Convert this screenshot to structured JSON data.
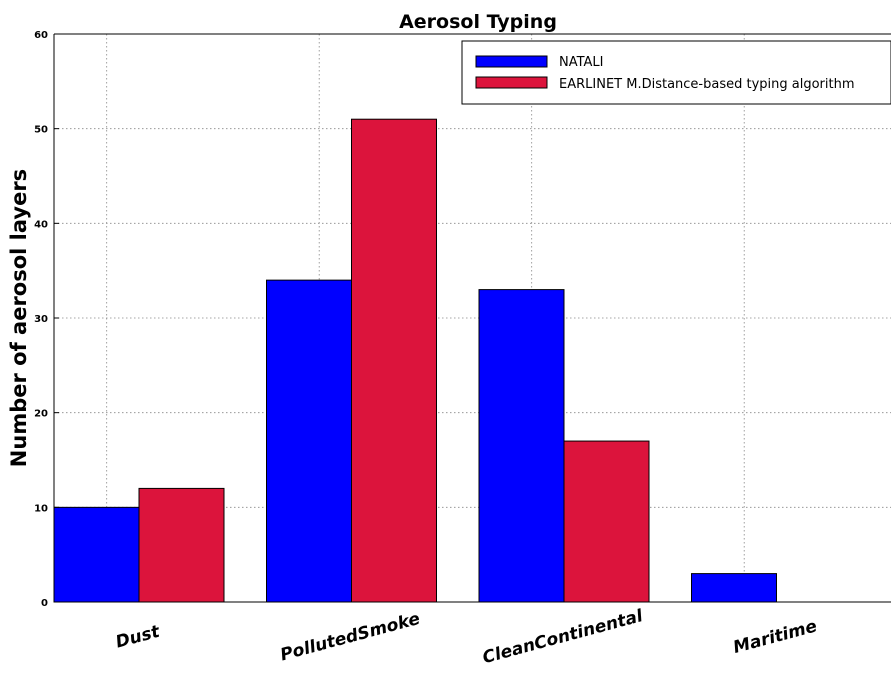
{
  "chart_data": {
    "type": "bar",
    "title": "Aerosol Typing",
    "xlabel": "",
    "ylabel": "Number of aerosol layers",
    "ylim": [
      0,
      60
    ],
    "yticks": [
      0,
      10,
      20,
      30,
      40,
      50,
      60
    ],
    "categories": [
      "Dust",
      "PollutedSmoke",
      "CleanContinental",
      "Maritime"
    ],
    "series": [
      {
        "name": "NATALI",
        "color": "#0000ff",
        "values": [
          10,
          34,
          33,
          3
        ]
      },
      {
        "name": "EARLINET M.Distance-based typing algorithm",
        "color": "#dc143c",
        "values": [
          12,
          51,
          17,
          0
        ]
      }
    ],
    "grid": true,
    "legend_position": "top-right"
  }
}
